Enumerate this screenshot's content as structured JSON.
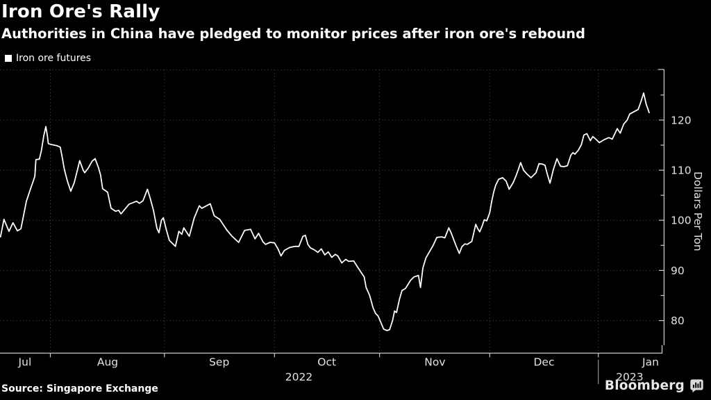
{
  "header": {
    "title": "Iron Ore's Rally",
    "subtitle": "Authorities in China have pledged to monitor prices after iron ore's rebound"
  },
  "legend": {
    "label": "Iron ore futures",
    "marker_color": "#ffffff"
  },
  "source_label": "Source: Singapore Exchange",
  "branding": {
    "wordmark": "Bloomberg",
    "icon": "bloomberg-speech-bubble-bar-chart-icon"
  },
  "colors": {
    "background": "#000000",
    "line": "#ffffff",
    "grid": "#3a3a3a",
    "axis": "#c9c9c9",
    "tick_text": "#e2e2e2",
    "text": "#ffffff"
  },
  "chart_data": {
    "type": "line",
    "title": "Iron Ore's Rally",
    "subtitle": "Authorities in China have pledged to monitor prices after iron ore's rebound",
    "xlabel": "",
    "ylabel": "Dollars Per Ton",
    "grid": true,
    "legend_position": "top-left",
    "x_axis": {
      "unit": "trading-day index t (t=0 is approx 2022-07-18; t=10 is Aug 1)",
      "range": [
        -0.1,
        133.2
      ],
      "month_ticks": [
        {
          "label": "Aug",
          "t": 10.0
        },
        {
          "label": "Sep",
          "t": 32.9
        },
        {
          "label": "Oct",
          "t": 55.0
        },
        {
          "label": "Nov",
          "t": 76.1
        },
        {
          "label": "Dec",
          "t": 98.2
        },
        {
          "label": "Jan",
          "t": 120.0
        }
      ],
      "month_labels": [
        {
          "label": "Jul",
          "t": 4.9
        },
        {
          "label": "Aug",
          "t": 21.5
        },
        {
          "label": "Sep",
          "t": 43.9
        },
        {
          "label": "Oct",
          "t": 65.5
        },
        {
          "label": "Nov",
          "t": 87.2
        },
        {
          "label": "Dec",
          "t": 109.1
        },
        {
          "label": "Jan",
          "t": 130.5
        }
      ],
      "year_labels": [
        {
          "label": "2022",
          "t": 59.9
        },
        {
          "label": "2023",
          "t": 126.3
        }
      ],
      "year_separator_t": 120.0
    },
    "y_axis": {
      "side": "right",
      "range": [
        73.5,
        130.1
      ],
      "major_ticks": [
        80,
        90,
        100,
        110,
        120
      ],
      "minor_ticks": [
        85,
        95,
        105,
        115,
        125
      ],
      "grid_values": [
        80,
        90,
        100,
        110,
        120,
        130
      ]
    },
    "series": [
      {
        "name": "Iron ore futures",
        "color": "#ffffff",
        "points": [
          [
            0,
            96.7
          ],
          [
            0.7,
            100.2
          ],
          [
            1.7,
            97.8
          ],
          [
            2.5,
            99.5
          ],
          [
            3.4,
            97.9
          ],
          [
            4.1,
            98.3
          ],
          [
            5.2,
            103.8
          ],
          [
            6.1,
            106.5
          ],
          [
            6.6,
            107.9
          ],
          [
            6.9,
            108.8
          ],
          [
            7.1,
            112.1
          ],
          [
            7.8,
            112.2
          ],
          [
            8.2,
            113.9
          ],
          [
            8.7,
            116.9
          ],
          [
            9.1,
            118.7
          ],
          [
            9.4,
            116.9
          ],
          [
            9.6,
            115.3
          ],
          [
            10.3,
            115.1
          ],
          [
            11.3,
            114.9
          ],
          [
            12,
            114.6
          ],
          [
            12.4,
            112.5
          ],
          [
            12.8,
            110.2
          ],
          [
            13.4,
            107.9
          ],
          [
            14.1,
            105.8
          ],
          [
            14.8,
            107.5
          ],
          [
            15.2,
            109.1
          ],
          [
            15.9,
            111.9
          ],
          [
            16.6,
            110
          ],
          [
            16.9,
            109.5
          ],
          [
            17.6,
            110.4
          ],
          [
            18.4,
            111.8
          ],
          [
            19,
            112.3
          ],
          [
            19.7,
            110.4
          ],
          [
            20.1,
            109
          ],
          [
            20.5,
            106.3
          ],
          [
            21.5,
            105.6
          ],
          [
            22.2,
            102.4
          ],
          [
            23.1,
            101.8
          ],
          [
            23.7,
            102
          ],
          [
            24.2,
            101.3
          ],
          [
            25.8,
            103.2
          ],
          [
            27.3,
            103.8
          ],
          [
            27.9,
            103.4
          ],
          [
            28.6,
            103.9
          ],
          [
            29.5,
            106.2
          ],
          [
            30.1,
            104.2
          ],
          [
            30.7,
            102
          ],
          [
            31.4,
            98.4
          ],
          [
            31.8,
            97.5
          ],
          [
            32.3,
            100
          ],
          [
            32.7,
            100.5
          ],
          [
            33.3,
            98.1
          ],
          [
            33.9,
            96
          ],
          [
            35.1,
            94.8
          ],
          [
            35.8,
            97.8
          ],
          [
            36.4,
            97.2
          ],
          [
            36.8,
            98.5
          ],
          [
            37.9,
            96.8
          ],
          [
            38.9,
            100.5
          ],
          [
            39.9,
            102.9
          ],
          [
            40.4,
            102.4
          ],
          [
            42.1,
            103.3
          ],
          [
            42.9,
            100.9
          ],
          [
            44,
            100.2
          ],
          [
            45.4,
            98.1
          ],
          [
            46.4,
            96.9
          ],
          [
            47.8,
            95.6
          ],
          [
            49,
            98
          ],
          [
            50.2,
            98.2
          ],
          [
            51.1,
            96.3
          ],
          [
            51.8,
            97.4
          ],
          [
            52.7,
            95.7
          ],
          [
            53.2,
            95.2
          ],
          [
            54.1,
            95.6
          ],
          [
            55,
            95.5
          ],
          [
            55.7,
            94.3
          ],
          [
            56.3,
            92.9
          ],
          [
            57,
            94
          ],
          [
            58.1,
            94.6
          ],
          [
            59.1,
            94.8
          ],
          [
            59.9,
            94.8
          ],
          [
            60.7,
            96.8
          ],
          [
            61.2,
            97
          ],
          [
            61.7,
            95.2
          ],
          [
            62.2,
            94.5
          ],
          [
            63,
            94.1
          ],
          [
            63.7,
            93.6
          ],
          [
            64.4,
            94.3
          ],
          [
            65.1,
            93.1
          ],
          [
            65.8,
            93.7
          ],
          [
            66.5,
            92.6
          ],
          [
            67.2,
            93.2
          ],
          [
            67.7,
            92.9
          ],
          [
            68.5,
            91.5
          ],
          [
            69.3,
            92.2
          ],
          [
            69.9,
            91.8
          ],
          [
            70.9,
            91.9
          ],
          [
            71.6,
            90.8
          ],
          [
            72.6,
            89.3
          ],
          [
            73,
            88.7
          ],
          [
            73.4,
            86.6
          ],
          [
            74.1,
            85
          ],
          [
            74.8,
            82.5
          ],
          [
            75.3,
            81.4
          ],
          [
            75.8,
            80.9
          ],
          [
            76.2,
            80
          ],
          [
            76.9,
            78.3
          ],
          [
            77.6,
            78
          ],
          [
            78.1,
            78.2
          ],
          [
            78.7,
            80
          ],
          [
            79.1,
            81.9
          ],
          [
            79.5,
            81.6
          ],
          [
            80.1,
            84.3
          ],
          [
            80.6,
            86
          ],
          [
            81.3,
            86.4
          ],
          [
            81.8,
            87.2
          ],
          [
            82.3,
            88
          ],
          [
            83,
            88.7
          ],
          [
            83.9,
            89
          ],
          [
            84.3,
            86.6
          ],
          [
            84.8,
            90.5
          ],
          [
            85.4,
            92.5
          ],
          [
            86.2,
            93.9
          ],
          [
            86.8,
            94.9
          ],
          [
            87.6,
            96.6
          ],
          [
            88.6,
            96.7
          ],
          [
            89.2,
            96.5
          ],
          [
            90,
            98.5
          ],
          [
            90.5,
            97.4
          ],
          [
            91.5,
            94.8
          ],
          [
            92.1,
            93.4
          ],
          [
            92.6,
            94.7
          ],
          [
            93.2,
            95.3
          ],
          [
            93.7,
            95.2
          ],
          [
            94.6,
            95.8
          ],
          [
            95.4,
            99.2
          ],
          [
            95.8,
            98.3
          ],
          [
            96.2,
            97.7
          ],
          [
            96.7,
            98.9
          ],
          [
            97.1,
            100.1
          ],
          [
            97.6,
            99.9
          ],
          [
            98.2,
            101.5
          ],
          [
            98.6,
            103.8
          ],
          [
            99,
            105.6
          ],
          [
            99.4,
            107
          ],
          [
            100,
            108.2
          ],
          [
            100.8,
            108.5
          ],
          [
            101.5,
            107.8
          ],
          [
            102.1,
            106.2
          ],
          [
            102.9,
            107.5
          ],
          [
            103.5,
            108.9
          ],
          [
            104,
            110.3
          ],
          [
            104.4,
            111.5
          ],
          [
            105,
            110
          ],
          [
            105.7,
            109.2
          ],
          [
            106.5,
            108.5
          ],
          [
            107.5,
            109.5
          ],
          [
            108.1,
            111.3
          ],
          [
            108.8,
            111.2
          ],
          [
            109.3,
            111
          ],
          [
            109.8,
            109.1
          ],
          [
            110.3,
            107.4
          ],
          [
            111,
            110.2
          ],
          [
            111.7,
            112.3
          ],
          [
            112.4,
            110.8
          ],
          [
            113.1,
            110.7
          ],
          [
            113.8,
            110.9
          ],
          [
            114.5,
            113
          ],
          [
            114.9,
            113.5
          ],
          [
            115.3,
            113.2
          ],
          [
            116,
            114
          ],
          [
            116.6,
            115.1
          ],
          [
            117.1,
            117
          ],
          [
            117.7,
            117.3
          ],
          [
            118.4,
            115.9
          ],
          [
            118.9,
            116.7
          ],
          [
            119.6,
            116.1
          ],
          [
            120.2,
            115.5
          ],
          [
            121.2,
            116.1
          ],
          [
            122.1,
            116.5
          ],
          [
            122.8,
            116.2
          ],
          [
            123.8,
            118.3
          ],
          [
            124.4,
            117.4
          ],
          [
            125.1,
            119.2
          ],
          [
            125.8,
            120
          ],
          [
            126.3,
            121.2
          ],
          [
            127.4,
            121.8
          ],
          [
            128,
            122.1
          ],
          [
            128.6,
            123.8
          ],
          [
            129.1,
            125.4
          ],
          [
            129.6,
            123.2
          ],
          [
            130.2,
            121.5
          ]
        ]
      }
    ]
  }
}
